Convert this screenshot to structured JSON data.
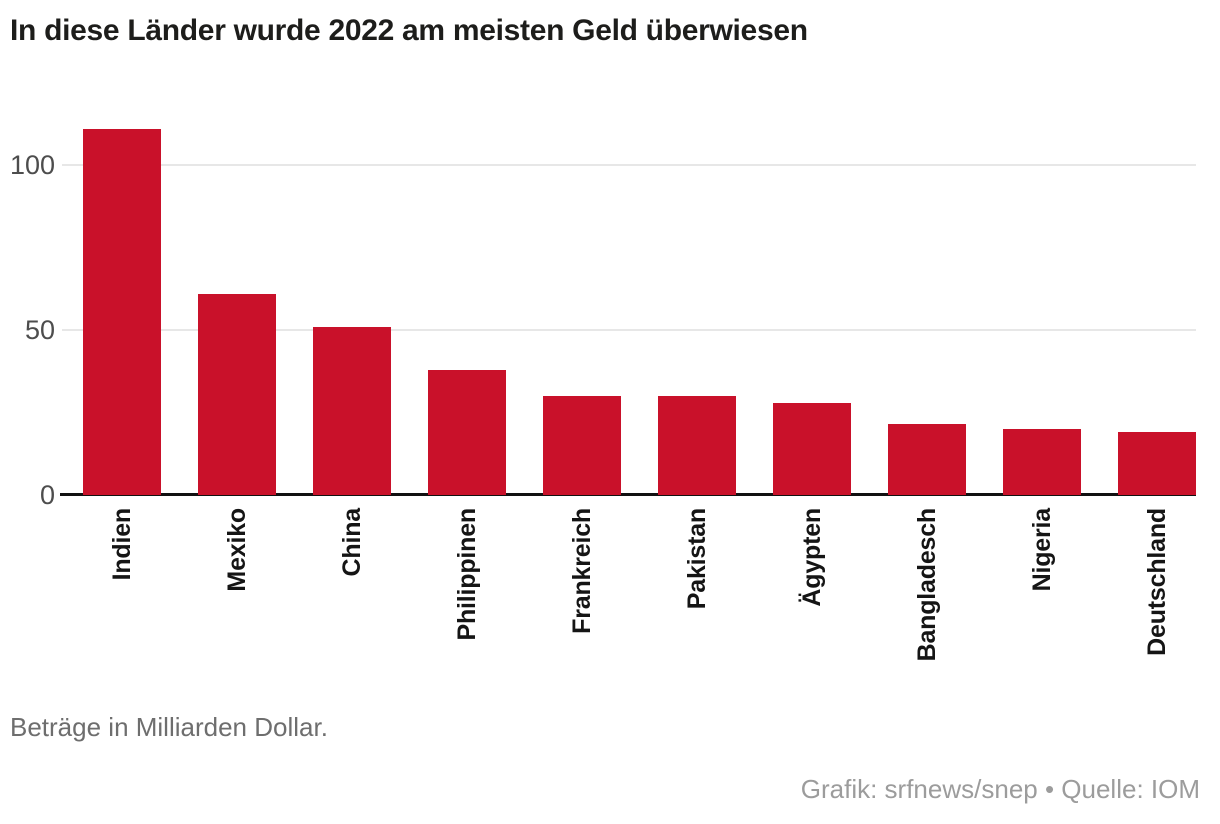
{
  "title": "In diese Länder wurde 2022 am meisten Geld überwiesen",
  "note": "Beträge in Milliarden Dollar.",
  "credit": "Grafik: srfnews/snep • Quelle: IOM",
  "colors": {
    "bar": "#c9112a",
    "grid": "#e7e7e7",
    "axis": "#111111",
    "title": "#1d1d1b",
    "tick": "#4d4d4d",
    "note": "#6e6e6e",
    "credit": "#9c9c9c"
  },
  "chart_data": {
    "type": "bar",
    "title": "In diese Länder wurde 2022 am meisten Geld überwiesen",
    "categories": [
      "Indien",
      "Mexiko",
      "China",
      "Philippinen",
      "Frankreich",
      "Pakistan",
      "Ägypten",
      "Bangladesch",
      "Nigeria",
      "Deutschland"
    ],
    "values": [
      111,
      61,
      51,
      38,
      30,
      30,
      28,
      21.5,
      20,
      19
    ],
    "unit_note": "Beträge in Milliarden Dollar.",
    "xlabel": "",
    "ylabel": "",
    "yticks": [
      0,
      50,
      100
    ],
    "ylim": [
      0,
      116
    ],
    "grid": "horizontal",
    "legend": "none",
    "bar_color": "#c9112a",
    "tick_label_rotation": "vertical"
  }
}
